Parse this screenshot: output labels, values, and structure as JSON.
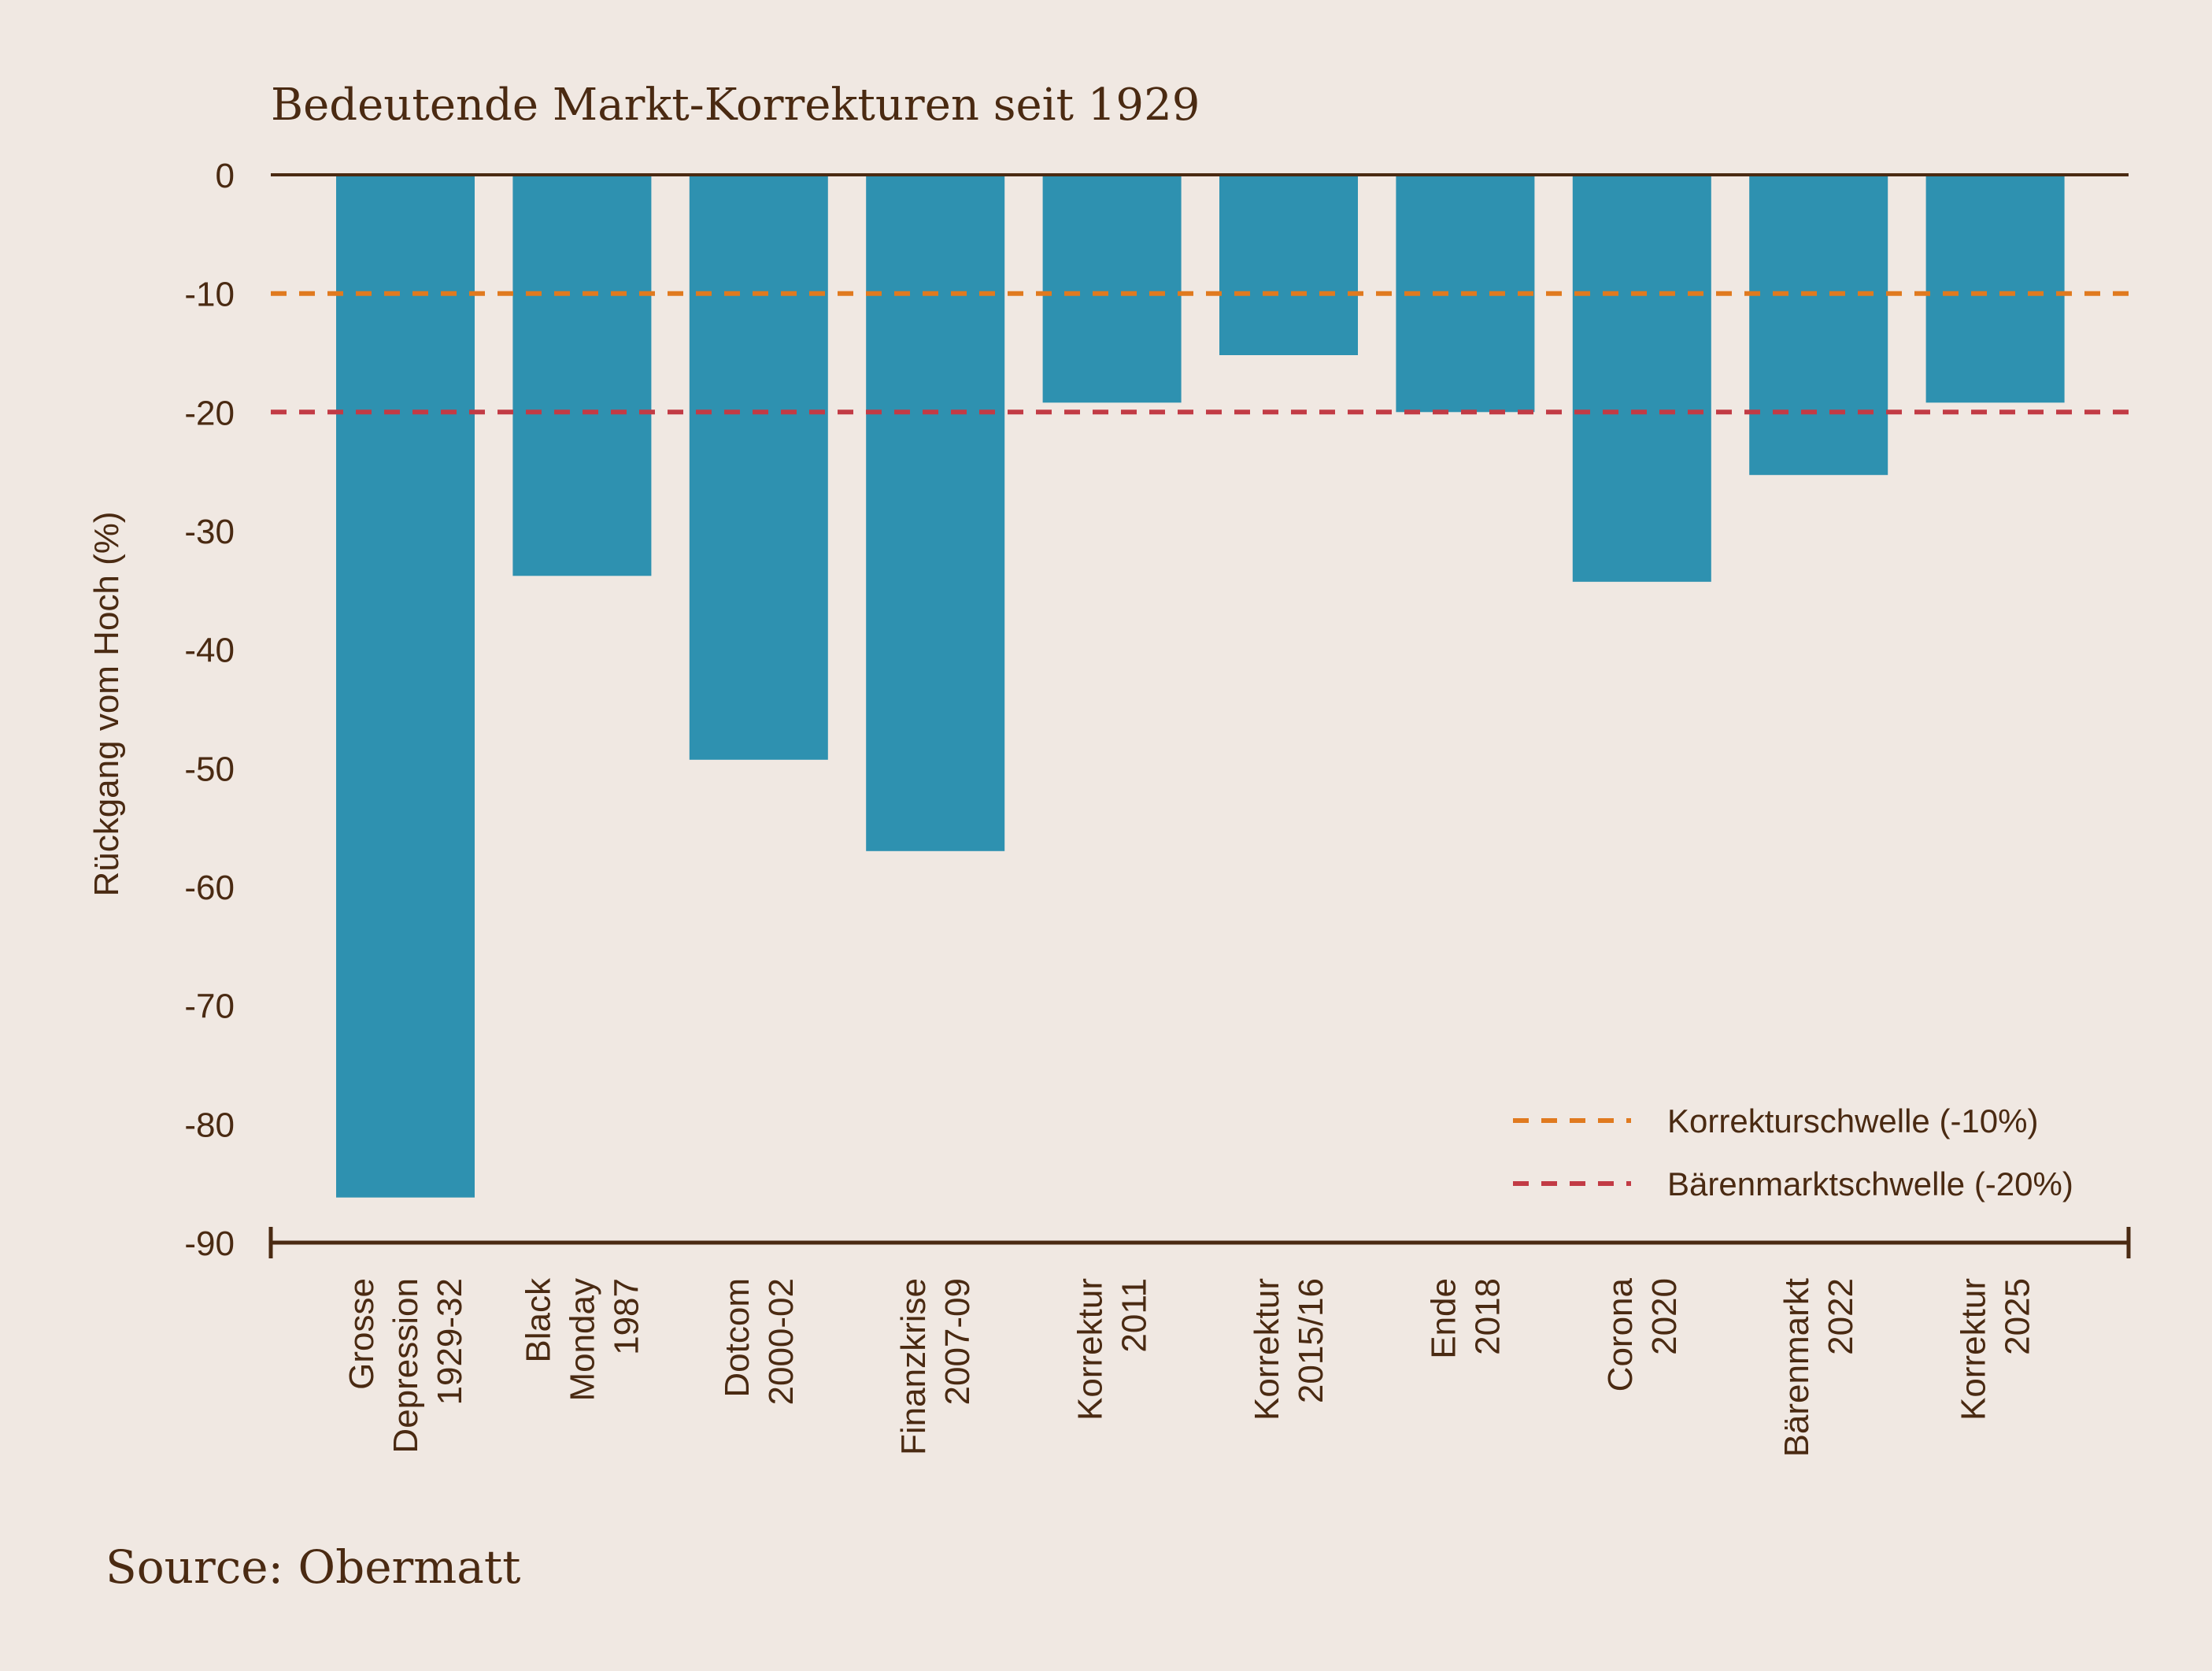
{
  "chart_data": {
    "type": "bar",
    "title": "Bedeutende Markt-Korrekturen seit 1929",
    "ylabel": "Rückgang vom Hoch (%)",
    "xlabel": "",
    "ylim": [
      -90,
      0
    ],
    "yticks": [
      "0",
      "-10",
      "-20",
      "-30",
      "-40",
      "-50",
      "-60",
      "-70",
      "-80",
      "-90"
    ],
    "categories": [
      [
        "Grosse",
        "Depression",
        "1929-32"
      ],
      [
        "Black",
        "Monday",
        "1987"
      ],
      [
        "Dotcom",
        "2000-02"
      ],
      [
        "Finanzkrise",
        "2007-09"
      ],
      [
        "Korrektur",
        "2011"
      ],
      [
        "Korrektur",
        "2015/16"
      ],
      [
        "Ende",
        "2018"
      ],
      [
        "Corona",
        "2020"
      ],
      [
        "Bärenmarkt",
        "2022"
      ],
      [
        "Korrektur",
        "2025"
      ]
    ],
    "values": [
      -86.2,
      -33.8,
      -49.3,
      -57.0,
      -19.2,
      -15.2,
      -20.0,
      -34.3,
      -25.3,
      -19.2
    ],
    "thresholds": [
      {
        "label": "Korrekturschwelle (-10%)",
        "value": -10,
        "color": "#e07a1f"
      },
      {
        "label": "Bärenmarktschwelle (-20%)",
        "value": -20,
        "color": "#c23b45"
      }
    ],
    "bar_color": "#2e91b0",
    "legend_position": "bottom-right",
    "grid": false
  },
  "source": "Source: Obermatt"
}
